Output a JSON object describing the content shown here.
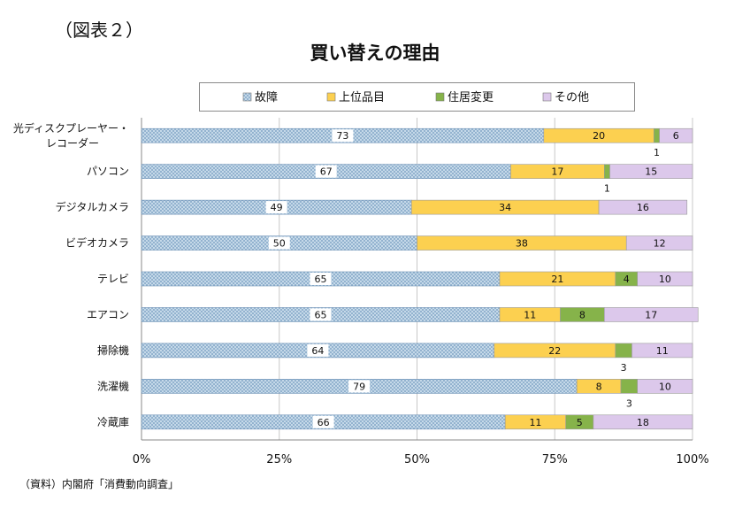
{
  "figure_label": "（図表２）",
  "source_note": "（資料）内閣府「消費動向調査」",
  "chart_data": {
    "type": "bar",
    "orientation": "horizontal",
    "stacked": "percent",
    "title": "買い替えの理由",
    "categories": [
      [
        "光ディスクプレーヤー・",
        "レコーダー"
      ],
      [
        "パソコン"
      ],
      [
        "デジタルカメラ"
      ],
      [
        "ビデオカメラ"
      ],
      [
        "テレビ"
      ],
      [
        "エアコン"
      ],
      [
        "掃除機"
      ],
      [
        "洗濯機"
      ],
      [
        "冷蔵庫"
      ]
    ],
    "series": [
      {
        "name": "故障",
        "color": "#cfe0ee",
        "pattern": "hatched",
        "values": [
          73,
          67,
          49,
          50,
          65,
          65,
          64,
          79,
          66
        ]
      },
      {
        "name": "上位品目",
        "color": "#fcd050",
        "values": [
          20,
          17,
          34,
          38,
          21,
          11,
          22,
          8,
          11
        ]
      },
      {
        "name": "住居変更",
        "color": "#86b34a",
        "values": [
          1,
          1,
          0,
          0,
          4,
          8,
          3,
          3,
          5
        ]
      },
      {
        "name": "その他",
        "color": "#dcc8eb",
        "values": [
          6,
          15,
          16,
          12,
          10,
          17,
          11,
          10,
          18
        ]
      }
    ],
    "x_ticks": [
      "0%",
      "25%",
      "50%",
      "75%",
      "100%"
    ],
    "xlim": [
      0,
      100
    ],
    "grid": "vertical",
    "legend": "top"
  }
}
